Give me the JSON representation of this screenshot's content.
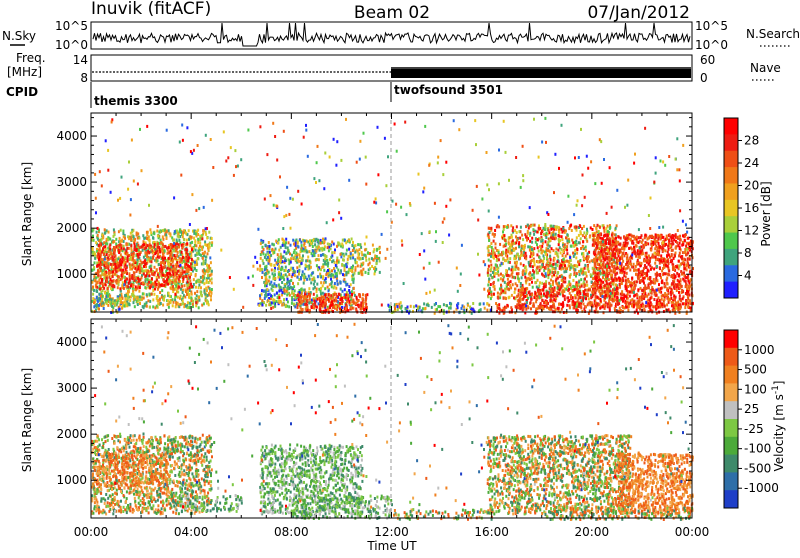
{
  "header": {
    "left_title": "Inuvik (fitACF)",
    "center_title": "Beam 02",
    "right_title": "07/Jan/2012"
  },
  "noise_panel": {
    "label": "N.Sky",
    "right_label": "N.Search",
    "left_ticks": [
      "10^5",
      "10^0"
    ],
    "right_ticks": [
      "10^5",
      "10^0"
    ]
  },
  "freq_panel": {
    "label_line1": "Freq.",
    "label_line2": "[MHz]",
    "right_label": "Nave",
    "left_ticks": [
      "14",
      "8"
    ],
    "right_ticks": [
      "60",
      "0"
    ]
  },
  "cpid": {
    "label": "CPID",
    "modes": [
      {
        "name": "themis 3300",
        "start_hour": 0
      },
      {
        "name": "twofsound 3501",
        "start_hour": 12
      }
    ]
  },
  "x_axis": {
    "label": "Time UT",
    "ticks": [
      "00:00",
      "04:00",
      "08:00",
      "12:00",
      "16:00",
      "20:00",
      "00:00"
    ]
  },
  "chart_data": [
    {
      "type": "heatmap",
      "parameter": "Power",
      "ylabel": "Slant Range [km]",
      "xlabel": "Time UT",
      "x_range_hours": [
        0,
        24
      ],
      "ylim": [
        180,
        4500
      ],
      "yticks": [
        1000,
        2000,
        3000,
        4000
      ],
      "colorbar_label": "Power [dB]",
      "colorbar_ticks": [
        "28",
        "24",
        "20",
        "16",
        "12",
        "8",
        "4"
      ],
      "colorbar_range": [
        0,
        32
      ],
      "colorbar_colors": [
        "#2020ff",
        "#2a6ae0",
        "#3fa47d",
        "#4fc84c",
        "#a9cf3a",
        "#e8c623",
        "#f0a01e",
        "#f07818",
        "#ef4f16",
        "#ee1c12",
        "#ff0000"
      ]
    },
    {
      "type": "heatmap",
      "parameter": "Velocity",
      "ylabel": "Slant Range [km]",
      "xlabel": "Time UT",
      "x_range_hours": [
        0,
        24
      ],
      "ylim": [
        180,
        4500
      ],
      "yticks": [
        1000,
        2000,
        3000,
        4000
      ],
      "colorbar_label": "Velocity [m s",
      "colorbar_label_sup": "-1",
      "colorbar_label_end": "]",
      "colorbar_ticks": [
        "1000",
        "500",
        "100",
        "25",
        "-25",
        "-100",
        "-500",
        "-1000"
      ],
      "colorbar_colors": [
        "#1f3fc8",
        "#2e6ea8",
        "#3e8a6a",
        "#4caa3a",
        "#7dc843",
        "#c0c0c0",
        "#f2a64a",
        "#f08020",
        "#ee5a18",
        "#ff0000"
      ]
    }
  ],
  "colors": {
    "ground_scatter": "#bdbdbd",
    "frame": "#000000"
  }
}
